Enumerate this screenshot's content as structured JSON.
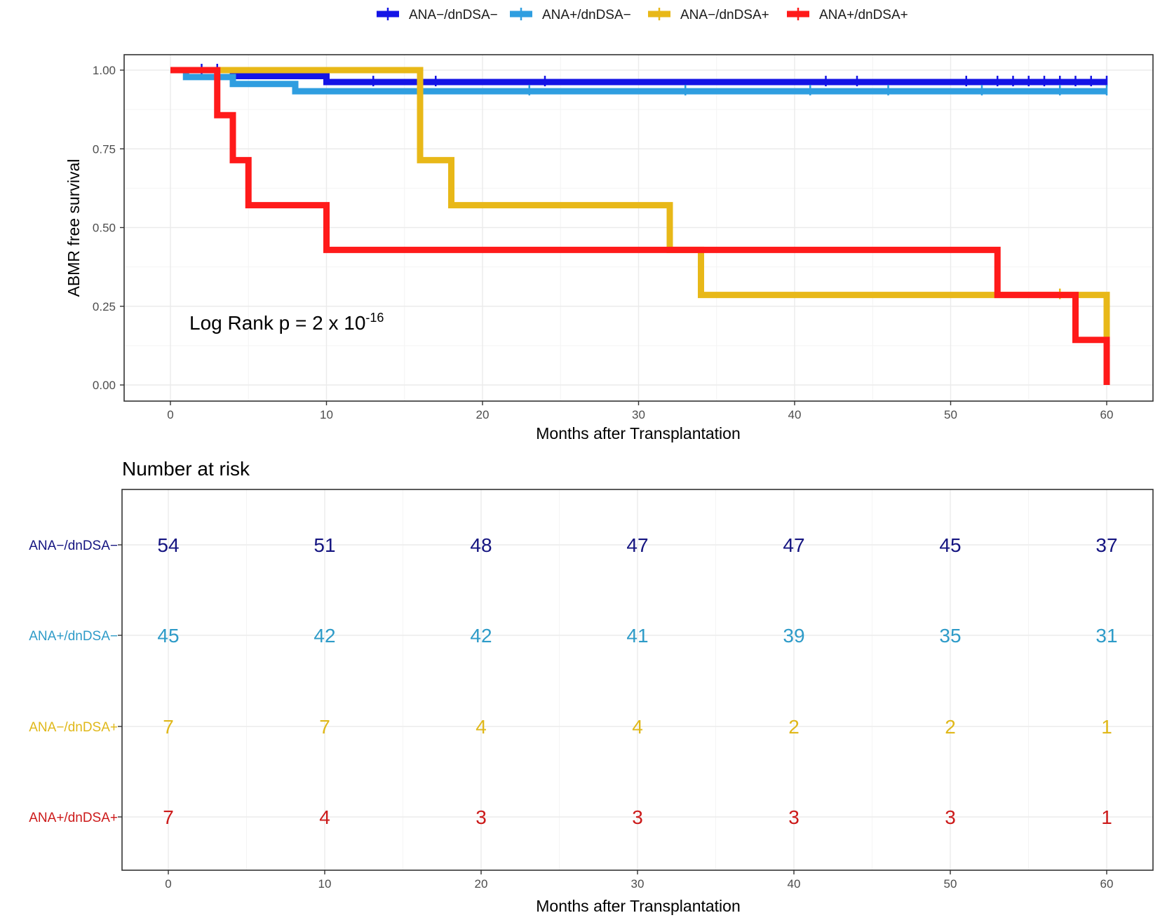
{
  "chart_data": [
    {
      "type": "line",
      "subtype": "kaplan-meier step",
      "xlabel": "Months after Transplantation",
      "ylabel": "ABMR free survival",
      "xlim": [
        0,
        60
      ],
      "ylim": [
        0,
        1
      ],
      "x_ticks": [
        "0",
        "10",
        "20",
        "30",
        "40",
        "50",
        "60"
      ],
      "y_ticks": [
        "0.00",
        "0.25",
        "0.50",
        "0.75",
        "1.00"
      ],
      "annotation": {
        "text": "Log Rank p = 2 x 10",
        "exponent": "-16"
      },
      "legend_position": "top",
      "series": [
        {
          "name": "ANA−/dnDSA−",
          "color": "#1414e6",
          "steps": [
            [
              0,
              1.0
            ],
            [
              4,
              0.981
            ],
            [
              10,
              0.962
            ],
            [
              60,
              0.962
            ]
          ],
          "censor_times": [
            2,
            3,
            13,
            17,
            24,
            42,
            44,
            51,
            53,
            54,
            55,
            56,
            57,
            58,
            59,
            60
          ]
        },
        {
          "name": "ANA+/dnDSA−",
          "color": "#2f9ee0",
          "steps": [
            [
              0,
              1.0
            ],
            [
              1,
              0.978
            ],
            [
              4,
              0.956
            ],
            [
              8,
              0.933
            ],
            [
              60,
              0.933
            ]
          ],
          "censor_times": [
            23,
            33,
            41,
            46,
            52,
            57,
            60
          ]
        },
        {
          "name": "ANA−/dnDSA+",
          "color": "#e8b818",
          "steps": [
            [
              0,
              1.0
            ],
            [
              16,
              0.714
            ],
            [
              18,
              0.571
            ],
            [
              32,
              0.429
            ],
            [
              34,
              0.286
            ],
            [
              60,
              0.0
            ]
          ],
          "censor_times": [
            57
          ]
        },
        {
          "name": "ANA+/dnDSA+",
          "color": "#ff1a1a",
          "steps": [
            [
              0,
              1.0
            ],
            [
              3,
              0.857
            ],
            [
              4,
              0.714
            ],
            [
              5,
              0.571
            ],
            [
              10,
              0.429
            ],
            [
              53,
              0.286
            ],
            [
              58,
              0.143
            ],
            [
              60,
              0.0
            ]
          ],
          "censor_times": []
        }
      ]
    },
    {
      "type": "table",
      "title": "Number at risk",
      "xlabel": "Months after Transplantation",
      "times": [
        0,
        10,
        20,
        30,
        40,
        50,
        60
      ],
      "x_ticks": [
        "0",
        "10",
        "20",
        "30",
        "40",
        "50",
        "60"
      ],
      "rows": [
        {
          "name": "ANA−/dnDSA−",
          "color": "#141480",
          "values": [
            54,
            51,
            48,
            47,
            47,
            45,
            37
          ]
        },
        {
          "name": "ANA+/dnDSA−",
          "color": "#2e9bc8",
          "values": [
            45,
            42,
            42,
            41,
            39,
            35,
            31
          ]
        },
        {
          "name": "ANA−/dnDSA+",
          "color": "#e0b81a",
          "values": [
            7,
            7,
            4,
            4,
            2,
            2,
            1
          ]
        },
        {
          "name": "ANA+/dnDSA+",
          "color": "#cc1a1a",
          "values": [
            7,
            4,
            3,
            3,
            3,
            3,
            1
          ]
        }
      ]
    }
  ]
}
